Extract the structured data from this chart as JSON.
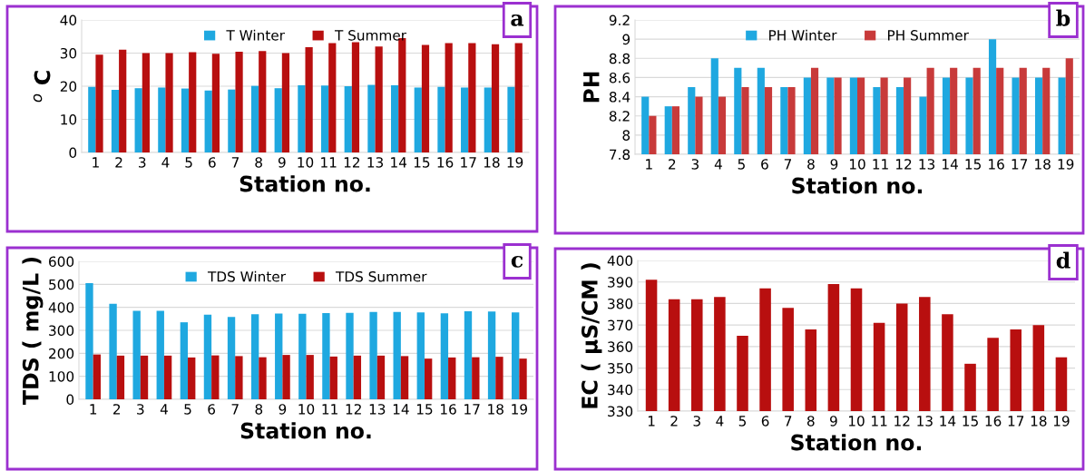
{
  "chart_data": [
    {
      "type": "bar",
      "categories": [
        "1",
        "2",
        "3",
        "4",
        "5",
        "6",
        "7",
        "8",
        "9",
        "10",
        "11",
        "12",
        "13",
        "14",
        "15",
        "16",
        "17",
        "18",
        "19"
      ],
      "xlabel": "Station no.",
      "ylabel": "$^{o}$ C",
      "ylim": [
        0,
        40
      ],
      "yticks": [
        0,
        10,
        20,
        30,
        40
      ],
      "grid": "y",
      "legend": "top",
      "annotations": [
        "a"
      ],
      "series": [
        {
          "name": "T Winter",
          "color": "#1fa8e0",
          "values": [
            19.8,
            18.9,
            19.4,
            19.6,
            19.3,
            18.7,
            19.0,
            20.1,
            19.4,
            20.3,
            20.2,
            20.0,
            20.4,
            20.3,
            19.6,
            19.8,
            19.6,
            19.6,
            19.8
          ]
        },
        {
          "name": "T Summer",
          "color": "#b80f0f",
          "values": [
            29.5,
            31,
            30,
            30,
            30.3,
            29.8,
            30.4,
            30.6,
            30,
            31.8,
            33,
            33.3,
            32,
            34.5,
            32.5,
            33,
            33,
            32.7,
            33
          ]
        }
      ]
    },
    {
      "type": "bar",
      "categories": [
        "1",
        "2",
        "3",
        "4",
        "5",
        "6",
        "7",
        "8",
        "9",
        "10",
        "11",
        "12",
        "13",
        "14",
        "15",
        "16",
        "17",
        "18",
        "19"
      ],
      "xlabel": "Station no.",
      "ylabel": "PH",
      "ylim": [
        7.8,
        9.2
      ],
      "yticks": [
        7.8,
        8,
        8.2,
        8.4,
        8.6,
        8.8,
        9,
        9.2
      ],
      "grid": "y",
      "legend": "top",
      "annotations": [
        "b"
      ],
      "series": [
        {
          "name": "PH Winter",
          "color": "#1fa8e0",
          "values": [
            8.4,
            8.3,
            8.5,
            8.8,
            8.7,
            8.7,
            8.5,
            8.6,
            8.6,
            8.6,
            8.5,
            8.5,
            8.4,
            8.6,
            8.6,
            9.0,
            8.6,
            8.6,
            8.6
          ]
        },
        {
          "name": "PH Summer",
          "color": "#c83a3a",
          "values": [
            8.2,
            8.3,
            8.4,
            8.4,
            8.5,
            8.5,
            8.5,
            8.7,
            8.6,
            8.6,
            8.6,
            8.6,
            8.7,
            8.7,
            8.7,
            8.7,
            8.7,
            8.7,
            8.8
          ]
        }
      ]
    },
    {
      "type": "bar",
      "categories": [
        "1",
        "2",
        "3",
        "4",
        "5",
        "6",
        "7",
        "8",
        "9",
        "10",
        "11",
        "12",
        "13",
        "14",
        "15",
        "16",
        "17",
        "18",
        "19"
      ],
      "xlabel": "Station no.",
      "ylabel": "TDS ( mg/L )",
      "ylim": [
        0,
        600
      ],
      "yticks": [
        0,
        100,
        200,
        300,
        400,
        500,
        600
      ],
      "grid": "y",
      "legend": "top",
      "annotations": [
        "c"
      ],
      "series": [
        {
          "name": "TDS Winter",
          "color": "#1fa8e0",
          "values": [
            505,
            415,
            385,
            385,
            335,
            368,
            358,
            370,
            373,
            372,
            375,
            376,
            380,
            380,
            378,
            374,
            383,
            382,
            378
          ]
        },
        {
          "name": "TDS Summer",
          "color": "#b80f0f",
          "values": [
            195,
            190,
            190,
            190,
            182,
            191,
            188,
            183,
            193,
            193,
            186,
            190,
            190,
            188,
            177,
            182,
            183,
            185,
            177
          ]
        }
      ]
    },
    {
      "type": "bar",
      "categories": [
        "1",
        "2",
        "3",
        "4",
        "5",
        "6",
        "7",
        "8",
        "9",
        "10",
        "11",
        "12",
        "13",
        "14",
        "15",
        "16",
        "17",
        "18",
        "19"
      ],
      "xlabel": "Station no.",
      "ylabel": "EC ( µS/CM )",
      "ylim": [
        330,
        400
      ],
      "yticks": [
        330,
        340,
        350,
        360,
        370,
        380,
        390,
        400
      ],
      "grid": "y",
      "annotations": [
        "d"
      ],
      "series": [
        {
          "color": "#b80f0f",
          "values": [
            391,
            382,
            382,
            383,
            365,
            387,
            378,
            368,
            389,
            387,
            371,
            380,
            383,
            375,
            352,
            364,
            368,
            370,
            355
          ]
        }
      ]
    }
  ]
}
